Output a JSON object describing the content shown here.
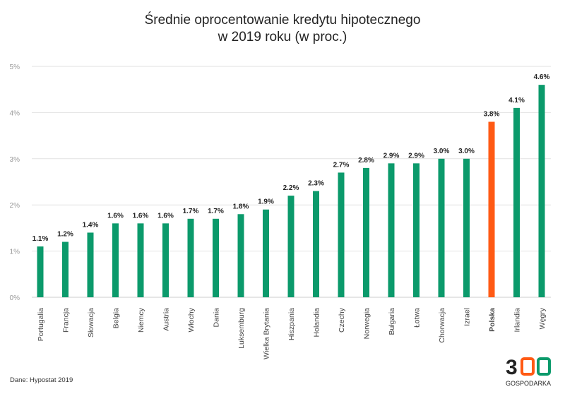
{
  "chart_data": {
    "type": "bar",
    "title": [
      "Średnie oprocentowanie kredytu hipotecznego",
      "w 2019 roku (w proc.)"
    ],
    "categories": [
      "Portugalia",
      "Francja",
      "Słowacja",
      "Belgia",
      "Niemcy",
      "Austria",
      "Włochy",
      "Dania",
      "Luksemburg",
      "Wielka Brytania",
      "Hiszpania",
      "Holandia",
      "Czechy",
      "Norwegia",
      "Bułgaria",
      "Łotwa",
      "Chorwacja",
      "Izrael",
      "Polska",
      "Irlandia",
      "Węgry"
    ],
    "values": [
      1.1,
      1.2,
      1.4,
      1.6,
      1.6,
      1.6,
      1.7,
      1.7,
      1.8,
      1.9,
      2.2,
      2.3,
      2.7,
      2.8,
      2.9,
      2.9,
      3.0,
      3.0,
      3.8,
      4.1,
      4.6
    ],
    "data_labels": [
      "1.1%",
      "1.2%",
      "1.4%",
      "1.6%",
      "1.6%",
      "1.6%",
      "1.7%",
      "1.7%",
      "1.8%",
      "1.9%",
      "2.2%",
      "2.3%",
      "2.7%",
      "2.8%",
      "2.9%",
      "2.9%",
      "3.0%",
      "3.0%",
      "3.8%",
      "4.1%",
      "4.6%"
    ],
    "highlight": "Polska",
    "yticks": [
      "0%",
      "1%",
      "2%",
      "3%",
      "4%",
      "5%"
    ],
    "ylim": [
      0,
      5
    ],
    "grid": true,
    "colors": {
      "default": "#0b9a6b",
      "highlight": "#ff5a14"
    }
  },
  "source": "Dane: Hypostat 2019",
  "logo": {
    "number": "300",
    "text": "GOSPODARKA"
  }
}
